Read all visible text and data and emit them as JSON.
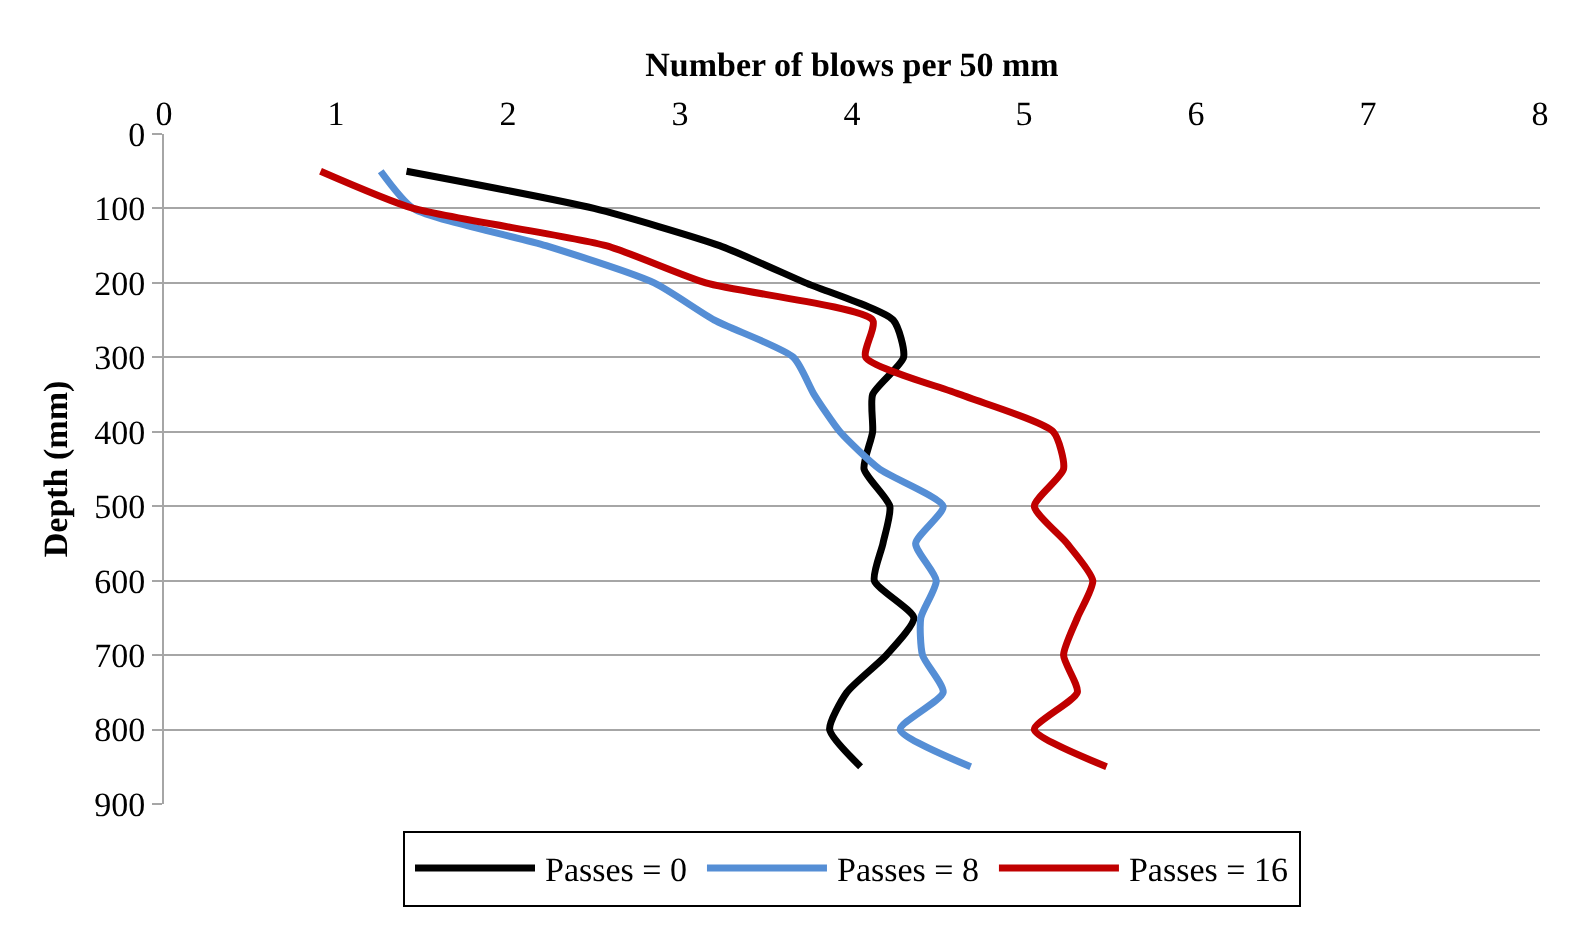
{
  "chart_data": {
    "type": "line",
    "xlabel": "Number of blows per 50 mm",
    "ylabel": "Depth (mm)",
    "xlim": [
      0,
      8
    ],
    "xticks": [
      0,
      1,
      2,
      3,
      4,
      5,
      6,
      7,
      8
    ],
    "ylim": [
      900,
      0
    ],
    "yticks": [
      0,
      100,
      200,
      300,
      400,
      500,
      600,
      700,
      800,
      900
    ],
    "grid": "y",
    "legend": "bottom",
    "marker": "none",
    "line_style": "solid",
    "series": [
      {
        "name": "Passes = 0",
        "color": "#000000",
        "x": [
          1.41,
          2.5,
          3.23,
          3.73,
          4.24,
          4.3,
          4.12,
          4.12,
          4.07,
          4.22,
          4.18,
          4.13,
          4.36,
          4.2,
          3.97,
          3.87,
          4.05
        ],
        "values": [
          50,
          100,
          150,
          200,
          250,
          300,
          350,
          400,
          450,
          500,
          550,
          600,
          650,
          700,
          750,
          800,
          850
        ]
      },
      {
        "name": "Passes = 8",
        "color": "#558ed5",
        "x": [
          1.26,
          1.45,
          2.22,
          2.85,
          3.2,
          3.66,
          3.78,
          3.93,
          4.16,
          4.53,
          4.37,
          4.49,
          4.4,
          4.41,
          4.53,
          4.28,
          4.69
        ],
        "values": [
          50,
          100,
          150,
          200,
          250,
          300,
          350,
          400,
          450,
          500,
          550,
          600,
          650,
          700,
          750,
          800,
          850
        ]
      },
      {
        "name": "Passes = 16",
        "color": "#c00000",
        "x": [
          0.91,
          1.45,
          2.57,
          3.15,
          4.12,
          4.08,
          4.63,
          5.17,
          5.23,
          5.06,
          5.25,
          5.4,
          5.31,
          5.23,
          5.31,
          5.06,
          5.48
        ],
        "values": [
          50,
          100,
          150,
          200,
          250,
          300,
          350,
          400,
          450,
          500,
          550,
          600,
          650,
          700,
          750,
          800,
          850
        ]
      }
    ]
  }
}
